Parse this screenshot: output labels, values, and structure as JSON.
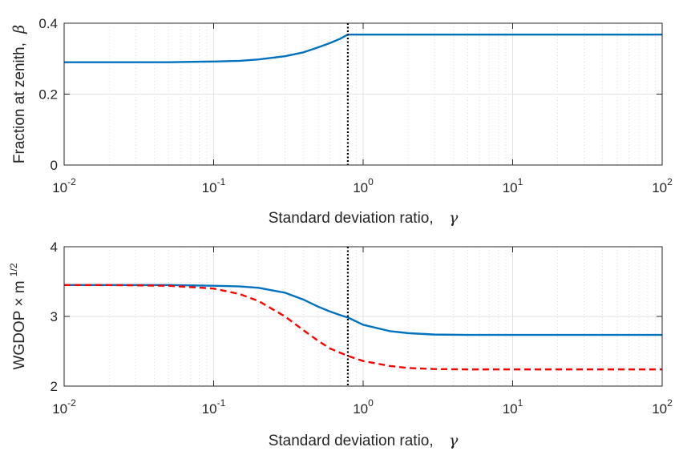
{
  "chart_data": [
    {
      "type": "line",
      "xscale": "log",
      "xlim": [
        0.01,
        100
      ],
      "ylim": [
        0,
        0.4
      ],
      "xticks": [
        {
          "base": "10",
          "exp": "-2"
        },
        {
          "base": "10",
          "exp": "-1"
        },
        {
          "base": "10",
          "exp": "0"
        },
        {
          "base": "10",
          "exp": "1"
        },
        {
          "base": "10",
          "exp": "2"
        }
      ],
      "yticks": [
        "0",
        "0.2",
        "0.4"
      ],
      "ytick_values": [
        0,
        0.2,
        0.4
      ],
      "xlabel": {
        "text": "Standard deviation ratio,",
        "symbol": "γ"
      },
      "ylabel": {
        "text": "Fraction at zenith,",
        "symbol": "β"
      },
      "grid": true,
      "vline": {
        "x": 0.79,
        "style": "dotted",
        "color": "#000000"
      },
      "series": [
        {
          "color": "#0072BD",
          "style": "solid",
          "x": [
            0.01,
            0.02,
            0.05,
            0.1,
            0.15,
            0.2,
            0.3,
            0.4,
            0.5,
            0.6,
            0.7,
            0.79,
            0.8,
            1,
            2,
            5,
            10,
            20,
            50,
            100
          ],
          "y": [
            0.29,
            0.29,
            0.29,
            0.292,
            0.294,
            0.298,
            0.307,
            0.318,
            0.332,
            0.344,
            0.356,
            0.368,
            0.368,
            0.368,
            0.368,
            0.368,
            0.368,
            0.368,
            0.368,
            0.368
          ]
        }
      ]
    },
    {
      "type": "line",
      "xscale": "log",
      "xlim": [
        0.01,
        100
      ],
      "ylim": [
        2,
        4
      ],
      "xticks": [
        {
          "base": "10",
          "exp": "-2"
        },
        {
          "base": "10",
          "exp": "-1"
        },
        {
          "base": "10",
          "exp": "0"
        },
        {
          "base": "10",
          "exp": "1"
        },
        {
          "base": "10",
          "exp": "2"
        }
      ],
      "yticks": [
        "2",
        "3",
        "4"
      ],
      "ytick_values": [
        2,
        3,
        4
      ],
      "xlabel": {
        "text": "Standard deviation ratio,",
        "symbol": "γ"
      },
      "ylabel": {
        "text": "WGDOP × m",
        "sup": "1/2"
      },
      "grid": true,
      "vline": {
        "x": 0.79,
        "style": "dotted",
        "color": "#000000"
      },
      "series": [
        {
          "color": "#0072BD",
          "style": "solid",
          "x": [
            0.01,
            0.02,
            0.05,
            0.1,
            0.15,
            0.2,
            0.3,
            0.4,
            0.5,
            0.6,
            0.7,
            0.8,
            1,
            1.5,
            2,
            3,
            5,
            10,
            20,
            50,
            100
          ],
          "y": [
            3.45,
            3.45,
            3.45,
            3.44,
            3.43,
            3.41,
            3.34,
            3.24,
            3.14,
            3.07,
            3.02,
            2.98,
            2.88,
            2.79,
            2.76,
            2.74,
            2.735,
            2.735,
            2.735,
            2.735,
            2.735
          ]
        },
        {
          "color": "#FF0000",
          "style": "dashed",
          "x": [
            0.01,
            0.02,
            0.05,
            0.1,
            0.15,
            0.2,
            0.3,
            0.4,
            0.5,
            0.6,
            0.7,
            0.8,
            1,
            1.5,
            2,
            3,
            5,
            10,
            20,
            50,
            100
          ],
          "y": [
            3.45,
            3.45,
            3.44,
            3.4,
            3.32,
            3.22,
            3.0,
            2.8,
            2.65,
            2.54,
            2.48,
            2.43,
            2.36,
            2.29,
            2.26,
            2.245,
            2.24,
            2.24,
            2.24,
            2.24,
            2.24
          ]
        }
      ]
    }
  ]
}
